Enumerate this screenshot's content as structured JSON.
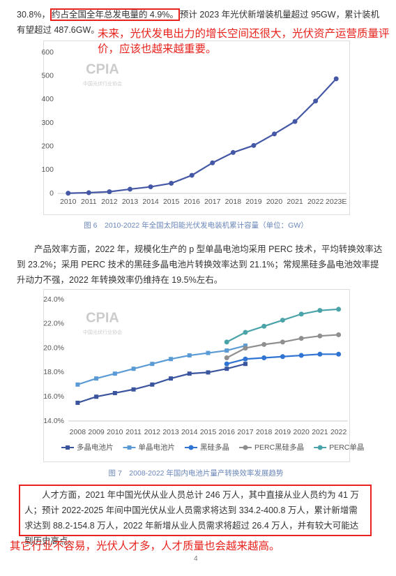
{
  "intro": {
    "before": "30.8%，",
    "boxed": "约占全国全年总发电量的 4.9%。",
    "after": "预计 2023 年光伏新增装机量超过 95GW，累计装机有望超过 487.6GW。"
  },
  "note_1": "未来，光伏发电出力的增长空间还很大，光伏资产运营质量评价，应该也越来越重要。",
  "paragraph_2": "产品效率方面，2022 年，规模化生产的 p 型单晶电池均采用 PERC 技术，平均转换效率达到 23.2%；采用 PERC 技术的黑硅多晶电池片转换效率达到 21.1%；常规黑硅多晶电池效率提升动力不强，2022 年转换效率仍维持在 19.5%左右。",
  "paragraph_3": "人才方面，2021 年中国光伏从业人员总计 246 万人，其中直接从业人员约为 41 万人；预计 2022-2025 年间中国光伏从业人员需求将达到 334.2-400.8 万人，累计新增需求达到 88.2-154.8 万人，2022 年新增从业人员需求将超过 26.4 万人，并有较大可能达到历史高点。",
  "note_2": "其它行业不容易，光伏人才多，人才质量也会越来越高。",
  "page_number": "4",
  "chart_data": [
    {
      "type": "line",
      "caption": "图 6　2010-2022 年全国太阳能光伏发电装机累计容量（单位：GW）",
      "watermark": {
        "title": "CPIA",
        "subtitle": "中国光伏行业协会"
      },
      "categories": [
        "2010",
        "2011",
        "2012",
        "2013",
        "2014",
        "2015",
        "2016",
        "2017",
        "2018",
        "2019",
        "2020",
        "2021",
        "2022",
        "2023E"
      ],
      "series": [
        {
          "color": "#4558a5",
          "marker": "circle",
          "values": [
            0.8,
            3,
            7,
            18,
            28,
            43,
            77,
            130,
            174,
            204,
            253,
            306,
            393,
            487.6
          ]
        }
      ],
      "ylim": [
        0,
        600
      ],
      "yticks": [
        0,
        100,
        200,
        300,
        400,
        500,
        600
      ],
      "grid": false
    },
    {
      "type": "line",
      "caption": "图 7　2008-2022 年国内电池片量产转换效率发展趋势",
      "watermark": {
        "title": "CPIA",
        "subtitle": "中国光伏行业协会"
      },
      "categories": [
        "2008",
        "2009",
        "2010",
        "2011",
        "2012",
        "2013",
        "2014",
        "2015",
        "2016",
        "2017",
        "2018",
        "2019",
        "2020",
        "2021",
        "2022"
      ],
      "series": [
        {
          "name": "多晶电池片",
          "color": "#3a559e",
          "marker": "square",
          "values": [
            15.5,
            16.0,
            16.3,
            16.6,
            17.0,
            17.5,
            17.9,
            18.0,
            18.3,
            18.7,
            null,
            null,
            null,
            null,
            null
          ]
        },
        {
          "name": "单晶电池片",
          "color": "#5b9bd5",
          "marker": "square",
          "values": [
            17.0,
            17.5,
            17.9,
            18.3,
            18.7,
            19.1,
            19.4,
            19.6,
            19.8,
            20.2,
            null,
            null,
            null,
            null,
            null
          ]
        },
        {
          "name": "黑硅多晶",
          "color": "#2f73d3",
          "marker": "circle",
          "values": [
            null,
            null,
            null,
            null,
            null,
            null,
            null,
            null,
            18.7,
            19.1,
            19.2,
            19.3,
            19.4,
            19.5,
            19.5
          ]
        },
        {
          "name": "PERC黑硅多晶",
          "color": "#8f8f8f",
          "marker": "circle",
          "values": [
            null,
            null,
            null,
            null,
            null,
            null,
            null,
            null,
            19.2,
            20.0,
            20.3,
            20.5,
            20.8,
            21.0,
            21.1
          ]
        },
        {
          "name": "PERC单晶",
          "color": "#4aa3a8",
          "marker": "circle",
          "values": [
            null,
            null,
            null,
            null,
            null,
            null,
            null,
            null,
            20.5,
            21.3,
            21.8,
            22.3,
            22.8,
            23.1,
            23.2
          ]
        }
      ],
      "ylim": [
        14,
        24
      ],
      "yticks": [
        {
          "value": 14,
          "label": "14.0%"
        },
        {
          "value": 16,
          "label": "16.0%"
        },
        {
          "value": 18,
          "label": "18.0%"
        },
        {
          "value": 20,
          "label": "20.0%"
        },
        {
          "value": 22,
          "label": "22.0%"
        },
        {
          "value": 24,
          "label": "24.0%"
        }
      ],
      "grid": false,
      "legend": "bottom"
    }
  ]
}
